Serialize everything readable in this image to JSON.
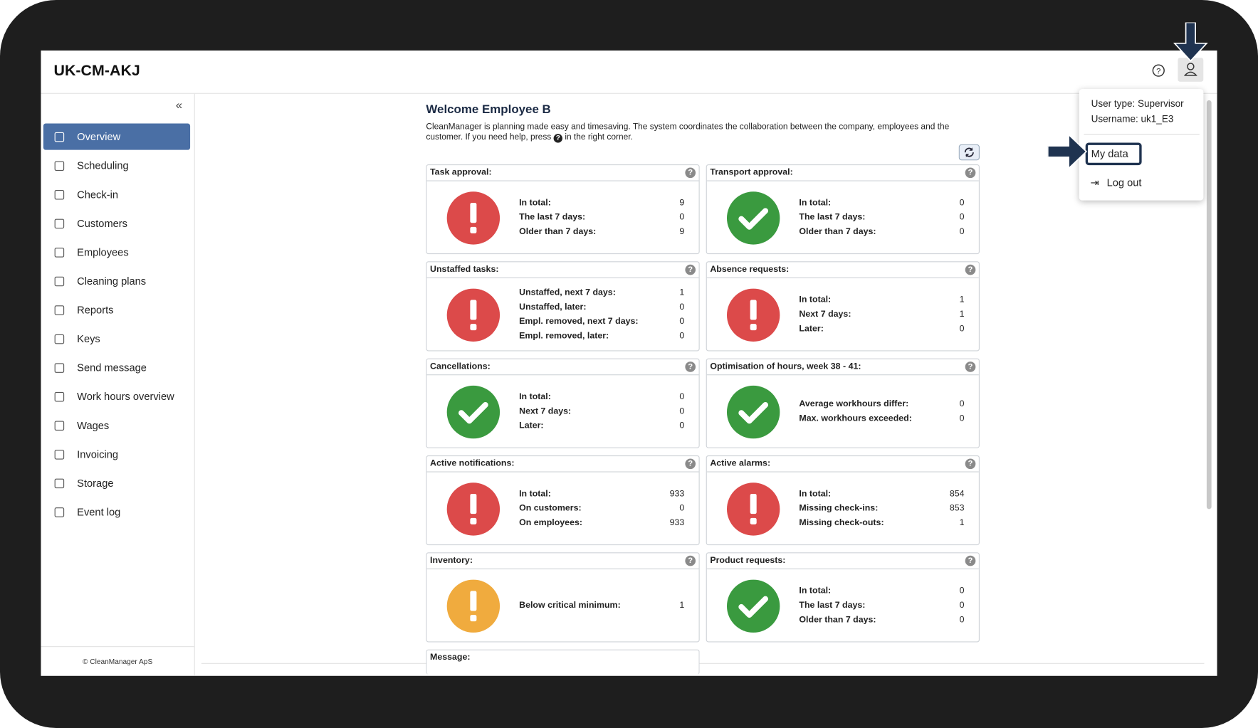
{
  "header": {
    "title": "UK-CM-AKJ"
  },
  "sidebar": {
    "items": [
      "Overview",
      "Scheduling",
      "Check-in",
      "Customers",
      "Employees",
      "Cleaning plans",
      "Reports",
      "Keys",
      "Send message",
      "Work hours overview",
      "Wages",
      "Invoicing",
      "Storage",
      "Event log"
    ],
    "active": 0,
    "footer": "© CleanManager ApS"
  },
  "main": {
    "title": "Welcome Employee B",
    "intro_before": "CleanManager is planning made easy and timesaving. The system coordinates the collaboration between the company, employees and the customer. If you need help, press",
    "intro_after": "in the right corner.",
    "cards": [
      {
        "title": "Task approval:",
        "status": "error",
        "rows": [
          {
            "label": "In total:",
            "value": 9
          },
          {
            "label": "The last 7 days:",
            "value": 0
          },
          {
            "label": "Older than 7 days:",
            "value": 9
          }
        ]
      },
      {
        "title": "Transport approval:",
        "status": "ok",
        "rows": [
          {
            "label": "In total:",
            "value": 0
          },
          {
            "label": "The last 7 days:",
            "value": 0
          },
          {
            "label": "Older than 7 days:",
            "value": 0
          }
        ]
      },
      {
        "title": "Unstaffed tasks:",
        "status": "error",
        "rows": [
          {
            "label": "Unstaffed, next 7 days:",
            "value": 1
          },
          {
            "label": "Unstaffed, later:",
            "value": 0
          },
          {
            "label": "Empl. removed, next 7 days:",
            "value": 0
          },
          {
            "label": "Empl. removed, later:",
            "value": 0
          }
        ]
      },
      {
        "title": "Absence requests:",
        "status": "error",
        "rows": [
          {
            "label": "In total:",
            "value": 1
          },
          {
            "label": "Next 7 days:",
            "value": 1
          },
          {
            "label": "Later:",
            "value": 0
          }
        ]
      },
      {
        "title": "Cancellations:",
        "status": "ok",
        "rows": [
          {
            "label": "In total:",
            "value": 0
          },
          {
            "label": "Next 7 days:",
            "value": 0
          },
          {
            "label": "Later:",
            "value": 0
          }
        ]
      },
      {
        "title": "Optimisation of hours, week 38 - 41:",
        "status": "ok",
        "rows": [
          {
            "label": "Average workhours differ:",
            "value": 0
          },
          {
            "label": "Max. workhours exceeded:",
            "value": 0
          }
        ]
      },
      {
        "title": "Active notifications:",
        "status": "error",
        "rows": [
          {
            "label": "In total:",
            "value": 933
          },
          {
            "label": "On customers:",
            "value": 0
          },
          {
            "label": "On employees:",
            "value": 933
          }
        ]
      },
      {
        "title": "Active alarms:",
        "status": "error",
        "rows": [
          {
            "label": "In total:",
            "value": 854
          },
          {
            "label": "Missing check-ins:",
            "value": 853
          },
          {
            "label": "Missing check-outs:",
            "value": 1
          }
        ]
      },
      {
        "title": "Inventory:",
        "status": "warning",
        "rows": [
          {
            "label": "Below critical minimum:",
            "value": 1
          }
        ]
      },
      {
        "title": "Product requests:",
        "status": "ok",
        "rows": [
          {
            "label": "In total:",
            "value": 0
          },
          {
            "label": "The last 7 days:",
            "value": 0
          },
          {
            "label": "Older than 7 days:",
            "value": 0
          }
        ]
      }
    ],
    "message_title": "Message:"
  },
  "dropdown": {
    "user_type": "User type: Supervisor",
    "username": "Username: uk1_E3",
    "my_data": "My data",
    "log_out": "Log out"
  }
}
